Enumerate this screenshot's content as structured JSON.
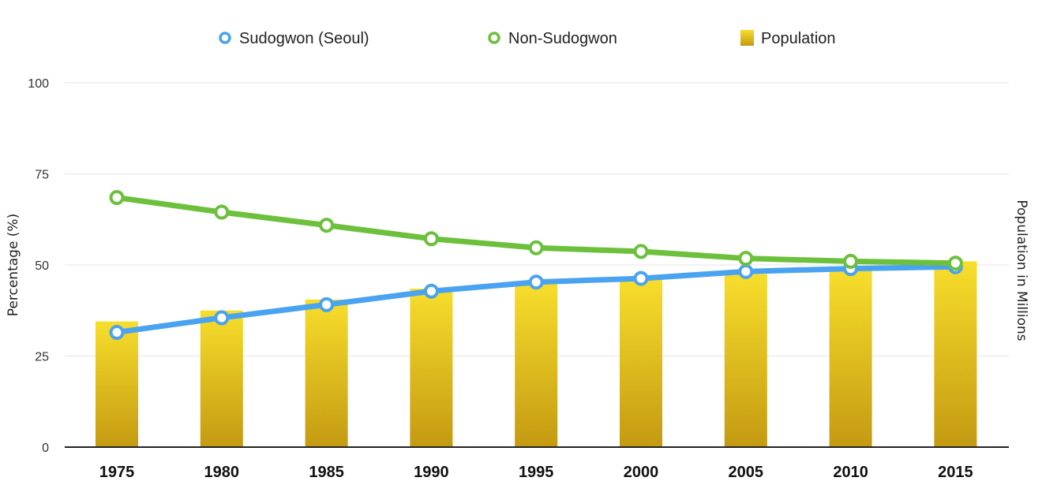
{
  "chart_data": {
    "type": "bar+line",
    "categories": [
      "1975",
      "1980",
      "1985",
      "1990",
      "1995",
      "2000",
      "2005",
      "2010",
      "2015"
    ],
    "legend": [
      {
        "label": "Sudogwon (Seoul)",
        "kind": "line-marker",
        "color": "#4aa3f0"
      },
      {
        "label": "Non-Sudogwon",
        "kind": "line-marker",
        "color": "#6cc03c"
      },
      {
        "label": "Population",
        "kind": "bar",
        "color": "#e0b81e"
      }
    ],
    "legend_placement": "top-center",
    "y_left": {
      "label": "Percentage (%)",
      "min": 0,
      "max": 100,
      "ticks": [
        0,
        25,
        50,
        75,
        100
      ]
    },
    "y_right": {
      "label": "Population in Millions"
    },
    "grid": true,
    "series": [
      {
        "name": "Sudogwon (Seoul)",
        "type": "line",
        "color": "#4aa3f0",
        "values": [
          31.5,
          35.5,
          39.1,
          42.8,
          45.3,
          46.3,
          48.2,
          49.0,
          49.5
        ]
      },
      {
        "name": "Non-Sudogwon",
        "type": "line",
        "color": "#6cc03c",
        "values": [
          68.5,
          64.5,
          60.9,
          57.2,
          54.7,
          53.7,
          51.8,
          51.0,
          50.5
        ]
      },
      {
        "name": "Population",
        "type": "bar",
        "color_top": "#f6dc2a",
        "color_bottom": "#c49a12",
        "values_on_percent_axis": [
          34.5,
          37.5,
          40.5,
          43.5,
          45.0,
          46.0,
          47.5,
          48.5,
          51.0
        ]
      }
    ]
  }
}
